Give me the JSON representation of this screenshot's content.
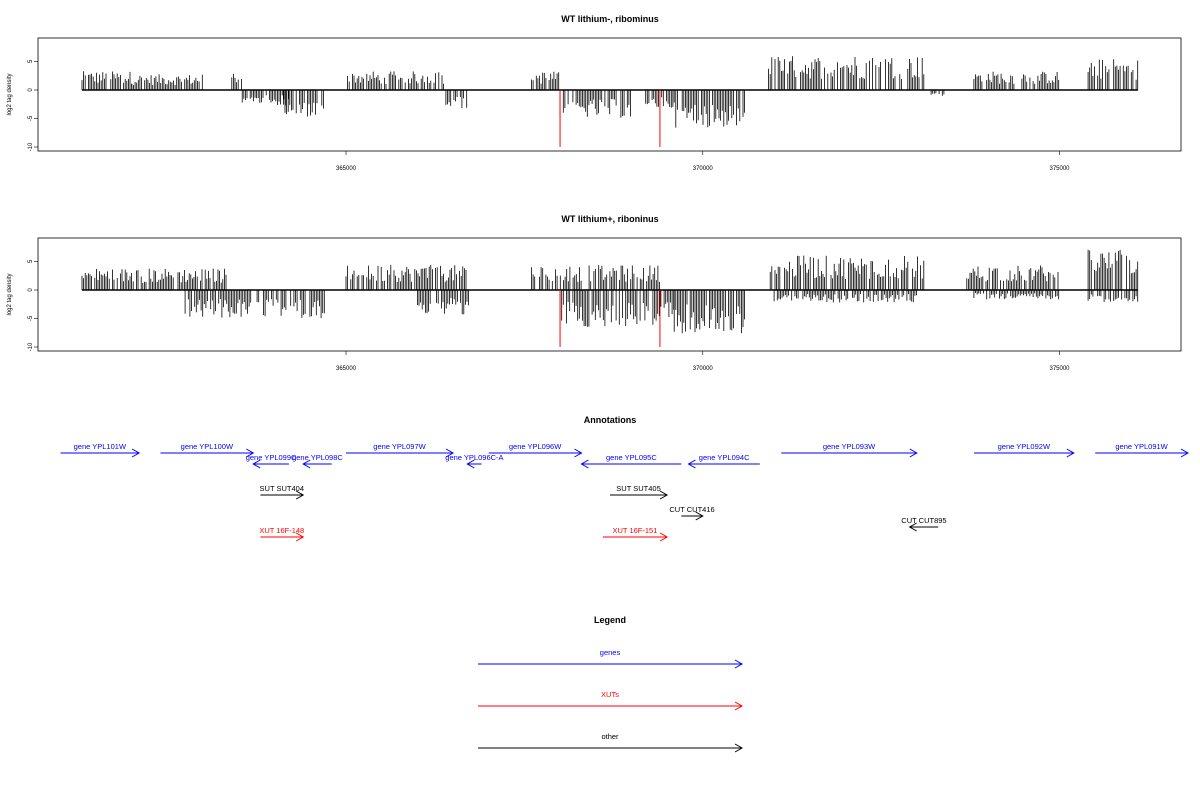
{
  "chart_data": [
    {
      "type": "bar",
      "title": "WT lithium-, ribominus",
      "ylabel": "log2 tag density",
      "xlabel": "",
      "xlim": [
        361200,
        376200
      ],
      "ylim": [
        -10.5,
        8.8
      ],
      "xticks": [
        365000,
        370000,
        375000
      ],
      "yticks": [
        -10,
        -5,
        0,
        5
      ],
      "grid": false,
      "series": [
        {
          "name": "",
          "color": "#000000",
          "note": "dense tag signal",
          "bins": [
            {
              "x": [
                361300,
                362000
              ],
              "v": 3
            },
            {
              "x": [
                362000,
                363000
              ],
              "v": 2.5
            },
            {
              "x": [
                363400,
                363600
              ],
              "v": 3
            },
            {
              "x": [
                363500,
                364200
              ],
              "v": -2.5
            },
            {
              "x": [
                364100,
                364700
              ],
              "v": -4.5
            },
            {
              "x": [
                365000,
                366400
              ],
              "v": 3
            },
            {
              "x": [
                366400,
                366700
              ],
              "v": -3
            },
            {
              "x": [
                367600,
                368000
              ],
              "v": 3
            },
            {
              "x": [
                368000,
                369000
              ],
              "v": -4.5
            },
            {
              "x": [
                369200,
                369600
              ],
              "v": -3
            },
            {
              "x": [
                369600,
                370600
              ],
              "v": -6
            },
            {
              "x": [
                370900,
                373100
              ],
              "v": 5.5
            },
            {
              "x": [
                373200,
                373400
              ],
              "v": -1
            },
            {
              "x": [
                373800,
                375000
              ],
              "v": 3
            },
            {
              "x": [
                375400,
                376100
              ],
              "v": 5
            }
          ]
        },
        {
          "name": "",
          "color": "#ff0000",
          "note": "red spikes",
          "points": [
            [
              368000,
              -10
            ],
            [
              369400,
              -10
            ]
          ]
        }
      ]
    },
    {
      "type": "bar",
      "title": "WT lithium+, riboninus",
      "ylabel": "log2 tag density",
      "xlabel": "",
      "xlim": [
        361200,
        376200
      ],
      "ylim": [
        -10.5,
        8.8
      ],
      "xticks": [
        365000,
        370000,
        375000
      ],
      "yticks": [
        -10,
        -5,
        0,
        5
      ],
      "grid": false,
      "series": [
        {
          "name": "",
          "color": "#000000",
          "note": "dense tag signal",
          "bins": [
            {
              "x": [
                361300,
                363400
              ],
              "v": 3.5
            },
            {
              "x": [
                362700,
                364700
              ],
              "v": -4.5
            },
            {
              "x": [
                365000,
                366700
              ],
              "v": 4
            },
            {
              "x": [
                366000,
                366800
              ],
              "v": -4
            },
            {
              "x": [
                367600,
                369400
              ],
              "v": 4
            },
            {
              "x": [
                368000,
                369600
              ],
              "v": -6
            },
            {
              "x": [
                369600,
                370600
              ],
              "v": -7
            },
            {
              "x": [
                370900,
                373100
              ],
              "v": 5.5
            },
            {
              "x": [
                371000,
                373000
              ],
              "v": -2
            },
            {
              "x": [
                373700,
                375000
              ],
              "v": 4
            },
            {
              "x": [
                373800,
                375000
              ],
              "v": -1.5
            },
            {
              "x": [
                375400,
                376100
              ],
              "v": 6.5
            },
            {
              "x": [
                375400,
                376100
              ],
              "v": -2
            }
          ]
        },
        {
          "name": "",
          "color": "#ff0000",
          "note": "red spikes",
          "points": [
            [
              368000,
              -10
            ],
            [
              369400,
              -10
            ]
          ]
        }
      ]
    }
  ],
  "annotations": {
    "title": "Annotations",
    "features": [
      {
        "label": "gene YPL101W",
        "color": "#0000ff",
        "dir": "right",
        "row": 0,
        "x1": 361000,
        "x2": 362100
      },
      {
        "label": "gene YPL100W",
        "color": "#0000ff",
        "dir": "right",
        "row": 0,
        "x1": 362400,
        "x2": 363700
      },
      {
        "label": "gene YPL099C",
        "color": "#0000ff",
        "dir": "left",
        "row": 1,
        "x1": 363700,
        "x2": 364200
      },
      {
        "label": "gene YPL098C",
        "color": "#0000ff",
        "dir": "left",
        "row": 1,
        "x1": 364400,
        "x2": 364800
      },
      {
        "label": "gene YPL097W",
        "color": "#0000ff",
        "dir": "right",
        "row": 0,
        "x1": 365000,
        "x2": 366500
      },
      {
        "label": "gene YPL096C-A",
        "color": "#0000ff",
        "dir": "left",
        "row": 1,
        "x1": 366700,
        "x2": 366900
      },
      {
        "label": "gene YPL096W",
        "color": "#0000ff",
        "dir": "right",
        "row": 0,
        "x1": 367000,
        "x2": 368300
      },
      {
        "label": "gene YPL095C",
        "color": "#0000ff",
        "dir": "left",
        "row": 1,
        "x1": 368300,
        "x2": 369700
      },
      {
        "label": "gene YPL094C",
        "color": "#0000ff",
        "dir": "left",
        "row": 1,
        "x1": 369800,
        "x2": 370800
      },
      {
        "label": "gene YPL093W",
        "color": "#0000ff",
        "dir": "right",
        "row": 0,
        "x1": 371100,
        "x2": 373000
      },
      {
        "label": "gene YPL092W",
        "color": "#0000ff",
        "dir": "right",
        "row": 0,
        "x1": 373800,
        "x2": 375200
      },
      {
        "label": "gene YPL091W",
        "color": "#0000ff",
        "dir": "right",
        "row": 0,
        "x1": 375500,
        "x2": 376800
      },
      {
        "label": "SUT SUT404",
        "color": "#000000",
        "dir": "right",
        "row": 2,
        "x1": 363800,
        "x2": 364400
      },
      {
        "label": "SUT SUT405",
        "color": "#000000",
        "dir": "right",
        "row": 2,
        "x1": 368700,
        "x2": 369500
      },
      {
        "label": "CUT CUT416",
        "color": "#000000",
        "dir": "right",
        "row": 3,
        "x1": 369700,
        "x2": 370000
      },
      {
        "label": "CUT CUT895",
        "color": "#000000",
        "dir": "left",
        "row": 4,
        "x1": 372900,
        "x2": 373300
      },
      {
        "label": "XUT 16F-148",
        "color": "#ff0000",
        "dir": "right",
        "row": 5,
        "x1": 363800,
        "x2": 364400
      },
      {
        "label": "XUT 16F-151",
        "color": "#ff0000",
        "dir": "right",
        "row": 5,
        "x1": 368600,
        "x2": 369500
      }
    ]
  },
  "legend": {
    "title": "Legend",
    "items": [
      {
        "label": "genes",
        "color": "#0000ff"
      },
      {
        "label": "XUTs",
        "color": "#ff0000"
      },
      {
        "label": "other",
        "color": "#000000"
      }
    ]
  }
}
